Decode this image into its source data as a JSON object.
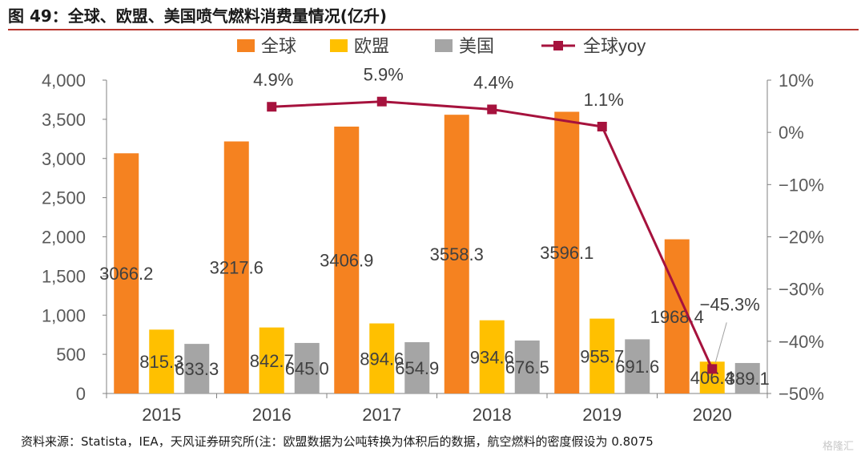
{
  "title": "图 49：全球、欧盟、美国喷气燃料消费量情况(亿升)",
  "source": "资料来源：Statista，IEA，天风证券研究所(注：欧盟数据为公吨转换为体积后的数据，航空燃料的密度假设为 0.8075",
  "watermark": "格隆汇",
  "colors": {
    "global": "#F58220",
    "eu": "#FFC000",
    "us": "#A5A5A5",
    "yoy": "#A6123D",
    "title_rule": "#b8342c"
  },
  "chart_data": {
    "type": "bar",
    "categories": [
      "2015",
      "2016",
      "2017",
      "2018",
      "2019",
      "2020"
    ],
    "series": [
      {
        "name": "全球",
        "type": "bar",
        "axis": "left",
        "values": [
          3066.2,
          3217.6,
          3406.9,
          3558.3,
          3596.1,
          1968.4
        ],
        "labels": [
          "3066.2",
          "3217.6",
          "3406.9",
          "3558.3",
          "3596.1",
          "1968.4"
        ]
      },
      {
        "name": "欧盟",
        "type": "bar",
        "axis": "left",
        "values": [
          815.3,
          842.7,
          894.6,
          934.6,
          955.7,
          406.4
        ],
        "labels": [
          "815.3",
          "842.7",
          "894.6",
          "934.6",
          "955.7",
          "406.4"
        ]
      },
      {
        "name": "美国",
        "type": "bar",
        "axis": "left",
        "values": [
          633.3,
          645.0,
          654.9,
          676.5,
          691.6,
          389.1
        ],
        "labels": [
          "633.3",
          "645.0",
          "654.9",
          "676.5",
          "691.6",
          "389.1"
        ]
      },
      {
        "name": "全球yoy",
        "type": "line",
        "axis": "right",
        "values": [
          null,
          4.9,
          5.9,
          4.4,
          1.1,
          -45.3
        ],
        "labels": [
          "",
          "4.9%",
          "5.9%",
          "4.4%",
          "1.1%",
          "−45.3%"
        ]
      }
    ],
    "y_left": {
      "min": 0,
      "max": 4000,
      "ticks": [
        "0",
        "500",
        "1,000",
        "1,500",
        "2,000",
        "2,500",
        "3,000",
        "3,500",
        "4,000"
      ]
    },
    "y_right": {
      "min": -50,
      "max": 10,
      "ticks": [
        "−50%",
        "−40%",
        "−30%",
        "−20%",
        "−10%",
        "0%",
        "10%"
      ]
    },
    "legend_position": "top",
    "grid": false
  }
}
